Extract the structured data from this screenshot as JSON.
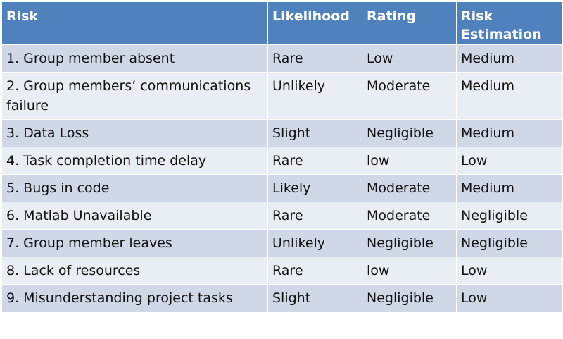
{
  "table": {
    "headers": [
      "Risk",
      "Likelihood",
      "Rating",
      "Risk Estimation"
    ],
    "rows": [
      [
        "1. Group member absent",
        "Rare",
        "Low",
        "Medium"
      ],
      [
        "2. Group members’ communications failure",
        "Unlikely",
        "Moderate",
        "Medium"
      ],
      [
        "3. Data Loss",
        "Slight",
        "Negligible",
        "Medium"
      ],
      [
        "4. Task completion time delay",
        "Rare",
        "low",
        "Low"
      ],
      [
        "5. Bugs in code",
        "Likely",
        "Moderate",
        "Medium"
      ],
      [
        "6. Matlab Unavailable",
        "Rare",
        "Moderate",
        "Negligible"
      ],
      [
        "7. Group member leaves",
        "Unlikely",
        "Negligible",
        "Negligible"
      ],
      [
        "8. Lack of resources",
        "Rare",
        "low",
        "Low"
      ],
      [
        "9. Misunderstanding project tasks",
        "Slight",
        "Negligible",
        "Low"
      ]
    ]
  },
  "colors": {
    "header_bg": "#4f81bd",
    "row_odd_bg": "#d0d8e8",
    "row_even_bg": "#e9edf4"
  }
}
